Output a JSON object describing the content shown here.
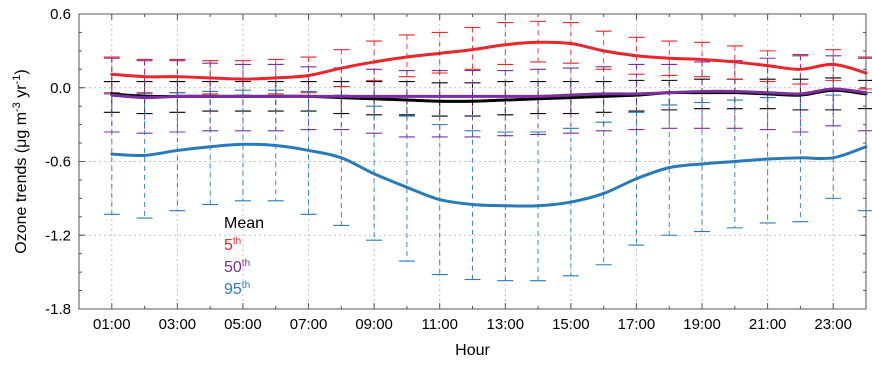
{
  "chart_data": {
    "type": "line",
    "title": "",
    "xlabel": "Hour",
    "ylabel": {
      "main": "Ozone trends (μg m",
      "sup1": "-3",
      "mid": " yr",
      "sup2": "-1",
      "end": ")"
    },
    "ylim": [
      -1.8,
      0.6
    ],
    "yticks": [
      0.6,
      0.0,
      -0.6,
      -1.2,
      -1.8
    ],
    "ytick_labels": [
      "0.6",
      "0.0",
      "-0.6",
      "-1.2",
      "-1.8"
    ],
    "xlim": [
      0,
      24
    ],
    "x": [
      1,
      2,
      3,
      4,
      5,
      6,
      7,
      8,
      9,
      10,
      11,
      12,
      13,
      14,
      15,
      16,
      17,
      18,
      19,
      20,
      21,
      22,
      23,
      24
    ],
    "xtick_labels": [
      "01:00",
      "03:00",
      "05:00",
      "07:00",
      "09:00",
      "11:00",
      "13:00",
      "15:00",
      "17:00",
      "19:00",
      "21:00",
      "23:00"
    ],
    "xtick_positions": [
      1,
      3,
      5,
      7,
      9,
      11,
      13,
      15,
      17,
      19,
      21,
      23
    ],
    "grid": true,
    "legend_placement": "lower-left",
    "series": [
      {
        "name": "Mean",
        "label_main": "Mean",
        "label_sup": "",
        "color": "#000000",
        "values": [
          -0.05,
          -0.07,
          -0.07,
          -0.07,
          -0.07,
          -0.07,
          -0.07,
          -0.08,
          -0.09,
          -0.1,
          -0.11,
          -0.11,
          -0.1,
          -0.09,
          -0.08,
          -0.07,
          -0.06,
          -0.04,
          -0.04,
          -0.04,
          -0.05,
          -0.06,
          -0.02,
          -0.05
        ],
        "err_upper": [
          0.05,
          0.05,
          0.05,
          0.05,
          0.05,
          0.05,
          0.05,
          0.05,
          0.05,
          0.05,
          0.04,
          0.04,
          0.05,
          0.05,
          0.05,
          0.05,
          0.06,
          0.06,
          0.07,
          0.07,
          0.07,
          0.07,
          0.08,
          0.06
        ],
        "err_lower": [
          -0.2,
          -0.21,
          -0.2,
          -0.19,
          -0.19,
          -0.19,
          -0.19,
          -0.21,
          -0.22,
          -0.22,
          -0.23,
          -0.23,
          -0.22,
          -0.21,
          -0.21,
          -0.2,
          -0.19,
          -0.18,
          -0.17,
          -0.17,
          -0.17,
          -0.18,
          -0.18,
          -0.17
        ]
      },
      {
        "name": "5th",
        "label_main": "5",
        "label_sup": "th",
        "color": "#e8262b",
        "values": [
          0.11,
          0.09,
          0.09,
          0.08,
          0.07,
          0.08,
          0.1,
          0.16,
          0.21,
          0.25,
          0.28,
          0.31,
          0.35,
          0.37,
          0.36,
          0.3,
          0.26,
          0.24,
          0.23,
          0.21,
          0.18,
          0.15,
          0.19,
          0.12
        ],
        "err_upper": [
          0.25,
          0.23,
          0.23,
          0.22,
          0.22,
          0.23,
          0.25,
          0.31,
          0.38,
          0.43,
          0.45,
          0.49,
          0.53,
          0.54,
          0.53,
          0.46,
          0.41,
          0.38,
          0.37,
          0.34,
          0.3,
          0.27,
          0.31,
          0.25
        ],
        "err_lower": [
          -0.04,
          -0.04,
          -0.04,
          -0.05,
          -0.06,
          -0.05,
          -0.04,
          0.01,
          0.06,
          0.09,
          0.12,
          0.15,
          0.19,
          0.21,
          0.2,
          0.15,
          0.11,
          0.1,
          0.09,
          0.07,
          0.05,
          0.03,
          0.06,
          -0.01
        ]
      },
      {
        "name": "50th",
        "label_main": "50",
        "label_sup": "th",
        "color": "#7b2f9e",
        "values": [
          -0.06,
          -0.08,
          -0.07,
          -0.07,
          -0.07,
          -0.07,
          -0.07,
          -0.07,
          -0.07,
          -0.07,
          -0.07,
          -0.07,
          -0.07,
          -0.07,
          -0.06,
          -0.05,
          -0.05,
          -0.04,
          -0.03,
          -0.03,
          -0.04,
          -0.05,
          -0.01,
          -0.04
        ],
        "err_upper": [
          0.24,
          0.22,
          0.22,
          0.2,
          0.19,
          0.19,
          0.17,
          0.16,
          0.15,
          0.14,
          0.14,
          0.14,
          0.14,
          0.15,
          0.16,
          0.17,
          0.19,
          0.19,
          0.21,
          0.22,
          0.24,
          0.26,
          0.26,
          0.24
        ],
        "err_lower": [
          -0.36,
          -0.37,
          -0.36,
          -0.35,
          -0.35,
          -0.35,
          -0.34,
          -0.34,
          -0.37,
          -0.4,
          -0.4,
          -0.4,
          -0.39,
          -0.38,
          -0.37,
          -0.35,
          -0.34,
          -0.33,
          -0.33,
          -0.33,
          -0.34,
          -0.36,
          -0.31,
          -0.35
        ]
      },
      {
        "name": "95th",
        "label_main": "95",
        "label_sup": "th",
        "color": "#2a7ab9",
        "values": [
          -0.54,
          -0.55,
          -0.51,
          -0.48,
          -0.46,
          -0.47,
          -0.51,
          -0.57,
          -0.7,
          -0.81,
          -0.91,
          -0.95,
          -0.96,
          -0.96,
          -0.93,
          -0.86,
          -0.74,
          -0.65,
          -0.62,
          -0.6,
          -0.58,
          -0.57,
          -0.57,
          -0.48
        ],
        "err_upper": [
          -0.05,
          -0.05,
          -0.04,
          -0.03,
          -0.02,
          -0.02,
          -0.03,
          -0.06,
          -0.15,
          -0.23,
          -0.3,
          -0.35,
          -0.36,
          -0.36,
          -0.33,
          -0.28,
          -0.2,
          -0.14,
          -0.12,
          -0.1,
          -0.08,
          -0.06,
          -0.06,
          -0.04
        ],
        "err_lower": [
          -1.03,
          -1.06,
          -1.0,
          -0.95,
          -0.92,
          -0.92,
          -1.03,
          -1.12,
          -1.24,
          -1.41,
          -1.52,
          -1.56,
          -1.57,
          -1.57,
          -1.53,
          -1.44,
          -1.28,
          -1.2,
          -1.17,
          -1.14,
          -1.1,
          -1.09,
          -0.9,
          -1.0
        ]
      }
    ],
    "colors": {
      "axis": "#555555",
      "grid": "#c0c0c0"
    }
  }
}
